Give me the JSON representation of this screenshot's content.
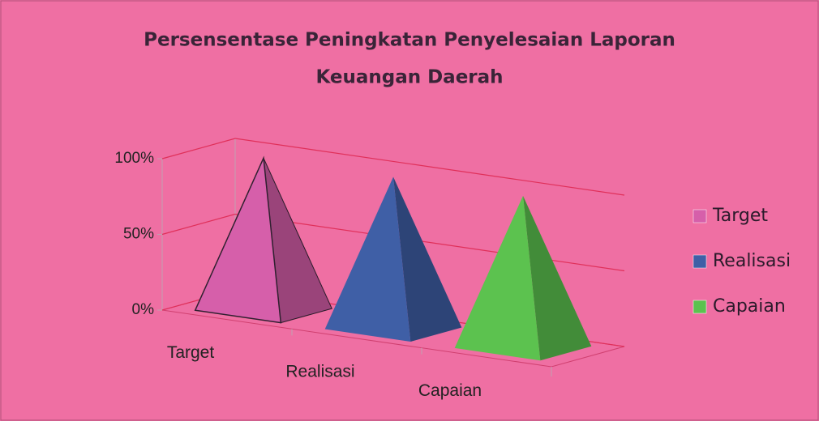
{
  "chart_data": {
    "type": "pyramid",
    "title": [
      "Persensentase Peningkatan Penyelesaian Laporan",
      "Keuangan Daerah"
    ],
    "categories": [
      "Target",
      "Realisasi",
      "Capaian"
    ],
    "values": [
      100,
      100,
      100
    ],
    "colors": [
      "#d65faa",
      "#3f5fa6",
      "#5cc24f"
    ],
    "ylim": [
      0,
      100
    ],
    "yticks": [
      {
        "value": 0,
        "label": "0%"
      },
      {
        "value": 50,
        "label": "50%"
      },
      {
        "value": 100,
        "label": "100%"
      }
    ],
    "grid": true,
    "legend": "right"
  }
}
